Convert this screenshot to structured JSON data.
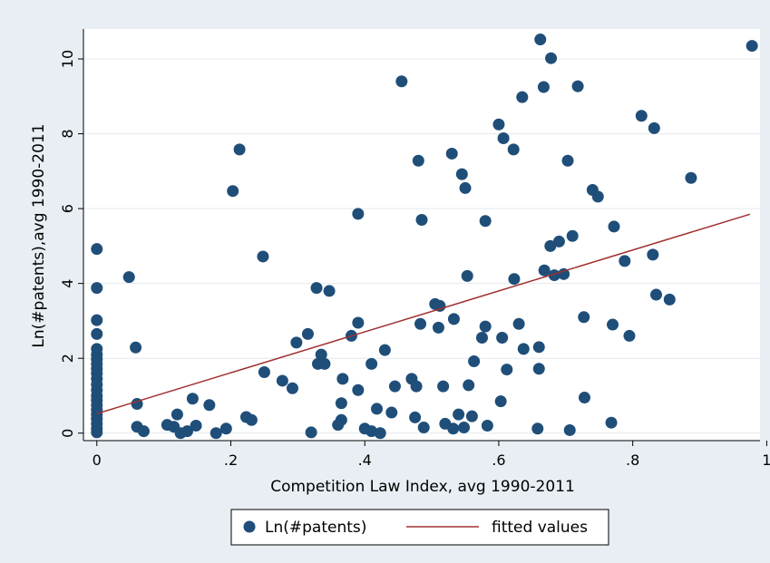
{
  "chart_data": {
    "type": "scatter",
    "xlabel": "Competition Law Index, avg 1990-2011",
    "ylabel": "Ln(#patents),avg 1990-2011",
    "xlim": [
      -0.02,
      0.99
    ],
    "ylim": [
      -0.2,
      10.8
    ],
    "x_ticks": [
      0,
      0.2,
      0.4,
      0.6,
      0.8,
      1
    ],
    "x_tick_labels": [
      "0",
      ".2",
      ".4",
      ".6",
      ".8",
      "1"
    ],
    "y_ticks": [
      0,
      2,
      4,
      6,
      8,
      10
    ],
    "y_tick_labels": [
      "0",
      "2",
      "4",
      "6",
      "8",
      "10"
    ],
    "grid": "horizontal",
    "legend_position": "bottom",
    "colors": {
      "points": "#1f4e79",
      "fit": "#a03030",
      "outer": "#e8eef3",
      "plot": "#ffffff",
      "grid": "#e4e9ee"
    },
    "series": [
      {
        "name": "Ln(#patents)",
        "kind": "scatter",
        "points": [
          [
            0,
            4.92
          ],
          [
            0,
            3.88
          ],
          [
            0,
            3.02
          ],
          [
            0,
            2.65
          ],
          [
            0,
            2.25
          ],
          [
            0,
            2.1
          ],
          [
            0,
            1.98
          ],
          [
            0,
            1.85
          ],
          [
            0,
            1.72
          ],
          [
            0,
            1.6
          ],
          [
            0,
            1.45
          ],
          [
            0,
            1.3
          ],
          [
            0,
            1.15
          ],
          [
            0,
            1.0
          ],
          [
            0,
            0.88
          ],
          [
            0,
            0.75
          ],
          [
            0,
            0.62
          ],
          [
            0,
            0.5
          ],
          [
            0,
            0.38
          ],
          [
            0,
            0.25
          ],
          [
            0,
            0.12
          ],
          [
            0,
            0.02
          ],
          [
            0.048,
            4.17
          ],
          [
            0.058,
            2.29
          ],
          [
            0.06,
            0.78
          ],
          [
            0.06,
            0.17
          ],
          [
            0.07,
            0.05
          ],
          [
            0.105,
            0.22
          ],
          [
            0.115,
            0.17
          ],
          [
            0.12,
            0.5
          ],
          [
            0.125,
            0.0
          ],
          [
            0.135,
            0.05
          ],
          [
            0.143,
            0.92
          ],
          [
            0.148,
            0.2
          ],
          [
            0.168,
            0.75
          ],
          [
            0.178,
            0.0
          ],
          [
            0.193,
            0.12
          ],
          [
            0.203,
            6.47
          ],
          [
            0.213,
            7.58
          ],
          [
            0.223,
            0.43
          ],
          [
            0.231,
            0.35
          ],
          [
            0.248,
            4.72
          ],
          [
            0.25,
            1.63
          ],
          [
            0.277,
            1.4
          ],
          [
            0.292,
            1.2
          ],
          [
            0.298,
            2.42
          ],
          [
            0.315,
            2.65
          ],
          [
            0.32,
            0.02
          ],
          [
            0.328,
            3.88
          ],
          [
            0.33,
            1.85
          ],
          [
            0.335,
            2.1
          ],
          [
            0.34,
            1.85
          ],
          [
            0.347,
            3.8
          ],
          [
            0.36,
            0.22
          ],
          [
            0.365,
            0.8
          ],
          [
            0.365,
            0.35
          ],
          [
            0.367,
            1.45
          ],
          [
            0.38,
            2.6
          ],
          [
            0.39,
            5.86
          ],
          [
            0.39,
            2.95
          ],
          [
            0.39,
            1.15
          ],
          [
            0.4,
            0.12
          ],
          [
            0.41,
            1.85
          ],
          [
            0.41,
            0.05
          ],
          [
            0.418,
            0.65
          ],
          [
            0.423,
            0.0
          ],
          [
            0.43,
            2.22
          ],
          [
            0.44,
            0.55
          ],
          [
            0.445,
            1.25
          ],
          [
            0.455,
            9.4
          ],
          [
            0.47,
            1.45
          ],
          [
            0.475,
            0.42
          ],
          [
            0.477,
            1.25
          ],
          [
            0.48,
            7.28
          ],
          [
            0.483,
            2.92
          ],
          [
            0.485,
            5.7
          ],
          [
            0.488,
            0.15
          ],
          [
            0.505,
            3.45
          ],
          [
            0.51,
            2.82
          ],
          [
            0.512,
            3.4
          ],
          [
            0.517,
            1.25
          ],
          [
            0.52,
            0.25
          ],
          [
            0.53,
            7.47
          ],
          [
            0.532,
            0.12
          ],
          [
            0.533,
            3.05
          ],
          [
            0.54,
            0.5
          ],
          [
            0.545,
            6.92
          ],
          [
            0.548,
            0.15
          ],
          [
            0.55,
            6.55
          ],
          [
            0.553,
            4.2
          ],
          [
            0.555,
            1.28
          ],
          [
            0.56,
            0.45
          ],
          [
            0.563,
            1.92
          ],
          [
            0.575,
            2.55
          ],
          [
            0.58,
            5.67
          ],
          [
            0.58,
            2.85
          ],
          [
            0.583,
            0.2
          ],
          [
            0.6,
            8.25
          ],
          [
            0.603,
            0.85
          ],
          [
            0.605,
            2.55
          ],
          [
            0.607,
            7.88
          ],
          [
            0.612,
            1.7
          ],
          [
            0.622,
            7.58
          ],
          [
            0.623,
            4.12
          ],
          [
            0.63,
            2.92
          ],
          [
            0.635,
            8.98
          ],
          [
            0.637,
            2.25
          ],
          [
            0.658,
            0.12
          ],
          [
            0.66,
            2.3
          ],
          [
            0.66,
            1.72
          ],
          [
            0.662,
            10.52
          ],
          [
            0.667,
            9.25
          ],
          [
            0.668,
            4.35
          ],
          [
            0.677,
            5.0
          ],
          [
            0.678,
            10.02
          ],
          [
            0.683,
            4.22
          ],
          [
            0.69,
            5.12
          ],
          [
            0.697,
            4.25
          ],
          [
            0.703,
            7.28
          ],
          [
            0.706,
            0.08
          ],
          [
            0.71,
            5.27
          ],
          [
            0.718,
            9.27
          ],
          [
            0.727,
            3.1
          ],
          [
            0.728,
            0.95
          ],
          [
            0.74,
            6.5
          ],
          [
            0.748,
            6.32
          ],
          [
            0.768,
            0.28
          ],
          [
            0.77,
            2.9
          ],
          [
            0.772,
            5.52
          ],
          [
            0.788,
            4.6
          ],
          [
            0.795,
            2.6
          ],
          [
            0.813,
            8.48
          ],
          [
            0.83,
            4.77
          ],
          [
            0.832,
            8.15
          ],
          [
            0.835,
            3.7
          ],
          [
            0.855,
            3.57
          ],
          [
            0.887,
            6.82
          ],
          [
            0.978,
            10.35
          ]
        ]
      },
      {
        "name": "fitted values",
        "kind": "line",
        "points": [
          [
            0,
            0.52
          ],
          [
            0.975,
            5.85
          ]
        ]
      }
    ]
  }
}
